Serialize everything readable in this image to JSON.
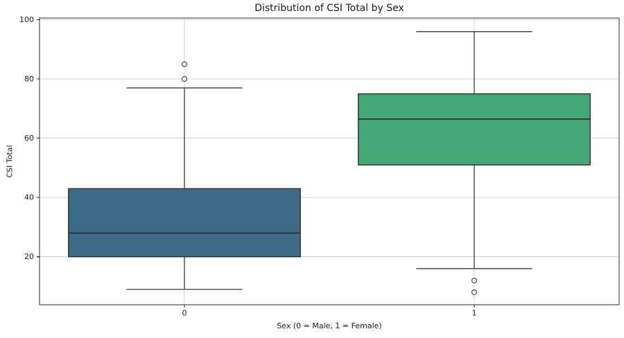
{
  "chart_data": {
    "type": "box",
    "title": "Distribution of CSI Total by Sex",
    "xlabel": "Sex (0 = Male, 1 = Female)",
    "ylabel": "CSI Total",
    "categories": [
      "0",
      "1"
    ],
    "y_ticks": [
      20,
      40,
      60,
      80,
      100
    ],
    "ylim": [
      3.8,
      100.6
    ],
    "grid": true,
    "legend_position": "none",
    "groups": [
      {
        "category": "0",
        "whisker_low": 9,
        "q1": 20,
        "median": 28,
        "q3": 43,
        "whisker_high": 77,
        "outliers": [
          80,
          85
        ],
        "fill_color": "#3d6a87"
      },
      {
        "category": "1",
        "whisker_low": 16,
        "q1": 51,
        "median": 66.5,
        "q3": 75,
        "whisker_high": 96,
        "outliers": [
          12,
          8
        ],
        "fill_color": "#46a777"
      }
    ],
    "style": {
      "edge_color": "#2e2e2e",
      "median_color": "#2e2e2e",
      "whisker_color": "#3d3d3d",
      "outlier_stroke": "#4a4a4a",
      "grid_color": "#d4d4d4",
      "spine_color": "#262626",
      "background": "#ffffff",
      "text_color": "#1a1a1a"
    }
  }
}
